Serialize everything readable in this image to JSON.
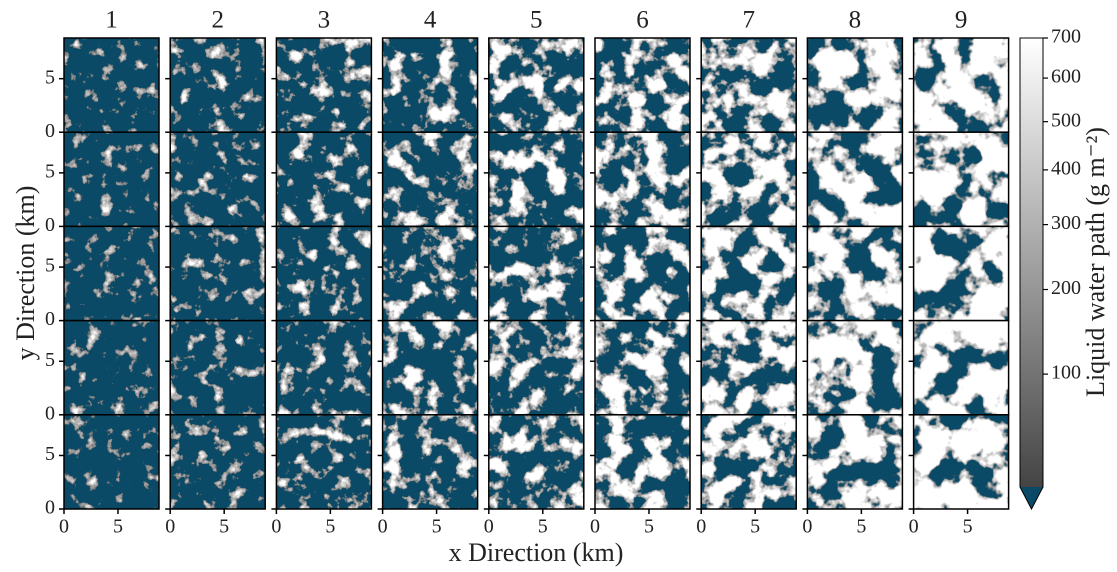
{
  "chart_data": {
    "type": "image_grid",
    "panel_titles": [
      "1",
      "2",
      "3",
      "4",
      "5",
      "6",
      "7",
      "8",
      "9"
    ],
    "xlabel": "x Direction (km)",
    "ylabel": "y Direction (km)",
    "xlim": [
      0,
      8.8
    ],
    "ylim": [
      0,
      8.8
    ],
    "xticks": [
      0,
      5
    ],
    "yticks": [
      0,
      5
    ],
    "background_color": "#0b4a66",
    "colorbar": {
      "label": "Liquid water path (g m⁻²)",
      "clim": [
        20,
        700
      ],
      "scale": "sqrt",
      "ticks": [
        100,
        200,
        300,
        400,
        500,
        600,
        700
      ],
      "low_color": "#444444",
      "high_color": "#ffffff",
      "under_color": "#0b4a66"
    }
  }
}
